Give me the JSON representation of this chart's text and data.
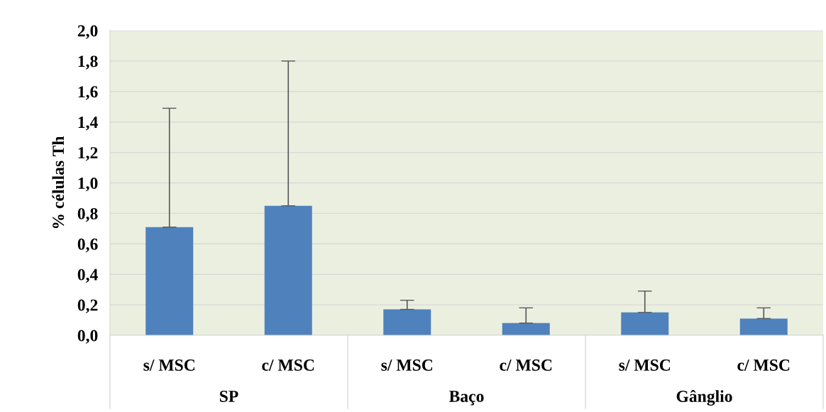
{
  "chart_data": {
    "type": "bar",
    "ylabel": "% células Th",
    "categories": [
      "s/ MSC",
      "c/ MSC",
      "s/ MSC",
      "c/ MSC",
      "s/ MSC",
      "c/ MSC"
    ],
    "values": [
      0.71,
      0.85,
      0.17,
      0.08,
      0.15,
      0.11
    ],
    "errors": [
      [
        0.71,
        1.49
      ],
      [
        0.85,
        1.8
      ],
      [
        0.17,
        0.23
      ],
      [
        0.08,
        0.18
      ],
      [
        0.15,
        0.29
      ],
      [
        0.11,
        0.18
      ]
    ],
    "color": "#4f81bd",
    "ylim": [
      0,
      2
    ],
    "yticks": [
      {
        "value": 0,
        "label": "0,0"
      },
      {
        "value": 0.2,
        "label": "0,2"
      },
      {
        "value": 0.4,
        "label": "0,4"
      },
      {
        "value": 0.6,
        "label": "0,6"
      },
      {
        "value": 0.8,
        "label": "0,8"
      },
      {
        "value": 1.0,
        "label": "1,0"
      },
      {
        "value": 1.2,
        "label": "1,2"
      },
      {
        "value": 1.4,
        "label": "1,4"
      },
      {
        "value": 1.6,
        "label": "1,6"
      },
      {
        "value": 1.8,
        "label": "1,8"
      },
      {
        "value": 2.0,
        "label": "2,0"
      }
    ],
    "grid": "y",
    "annotations": [
      "SP",
      "Baço",
      "Gânglio"
    ]
  }
}
